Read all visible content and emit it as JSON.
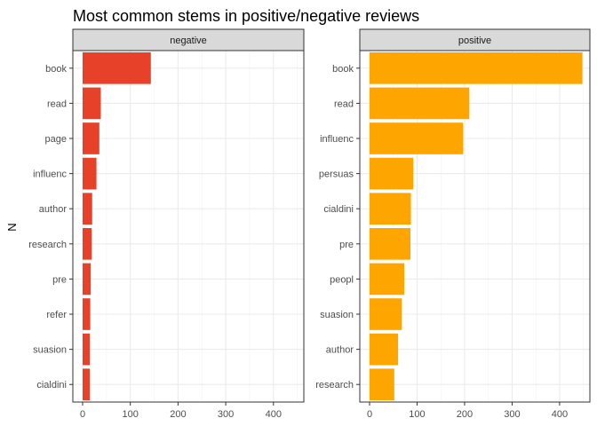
{
  "chart_data": {
    "type": "bar",
    "orientation": "horizontal",
    "title": "Most common stems in positive/negative reviews",
    "xlabel": "N",
    "ylabel": "",
    "xlim": [
      0,
      460
    ],
    "x_ticks": [
      0,
      100,
      200,
      300,
      400
    ],
    "grid": true,
    "legend": "none",
    "facets": [
      {
        "name": "negative",
        "color": "#E8412A",
        "categories": [
          "book",
          "read",
          "page",
          "influenc",
          "author",
          "research",
          "pre",
          "refer",
          "suasion",
          "cialdini"
        ],
        "values": [
          143,
          38,
          35,
          29,
          20,
          19,
          17,
          16,
          15,
          15
        ]
      },
      {
        "name": "positive",
        "color": "#FFA500",
        "categories": [
          "book",
          "read",
          "influenc",
          "persuas",
          "cialdini",
          "pre",
          "peopl",
          "suasion",
          "author",
          "research"
        ],
        "values": [
          448,
          210,
          197,
          92,
          87,
          86,
          73,
          68,
          60,
          52
        ]
      }
    ]
  }
}
